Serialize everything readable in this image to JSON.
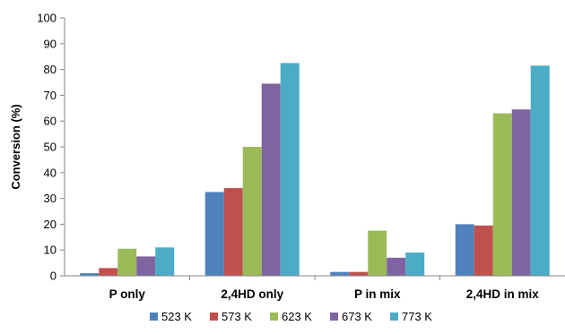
{
  "chart_data": {
    "type": "bar",
    "title": "",
    "xlabel": "",
    "ylabel": "Conversion (%)",
    "ylim": [
      0,
      100
    ],
    "yticks": [
      0,
      10,
      20,
      30,
      40,
      50,
      60,
      70,
      80,
      90,
      100
    ],
    "grid": false,
    "legend_position": "bottom",
    "categories": [
      "P only",
      "2,4HD only",
      "P in mix",
      "2,4HD in mix"
    ],
    "series": [
      {
        "name": "523 K",
        "color": "#4F81BD",
        "values": [
          1,
          32.5,
          1.5,
          20
        ]
      },
      {
        "name": "573 K",
        "color": "#C0504D",
        "values": [
          3,
          34,
          1.5,
          19.5
        ]
      },
      {
        "name": "623 K",
        "color": "#9BBB59",
        "values": [
          10.5,
          50,
          17.5,
          63
        ]
      },
      {
        "name": "673 K",
        "color": "#8064A2",
        "values": [
          7.5,
          74.5,
          7,
          64.5
        ]
      },
      {
        "name": "773 K",
        "color": "#4BACC6",
        "values": [
          11,
          82.5,
          9,
          81.5
        ]
      }
    ]
  }
}
